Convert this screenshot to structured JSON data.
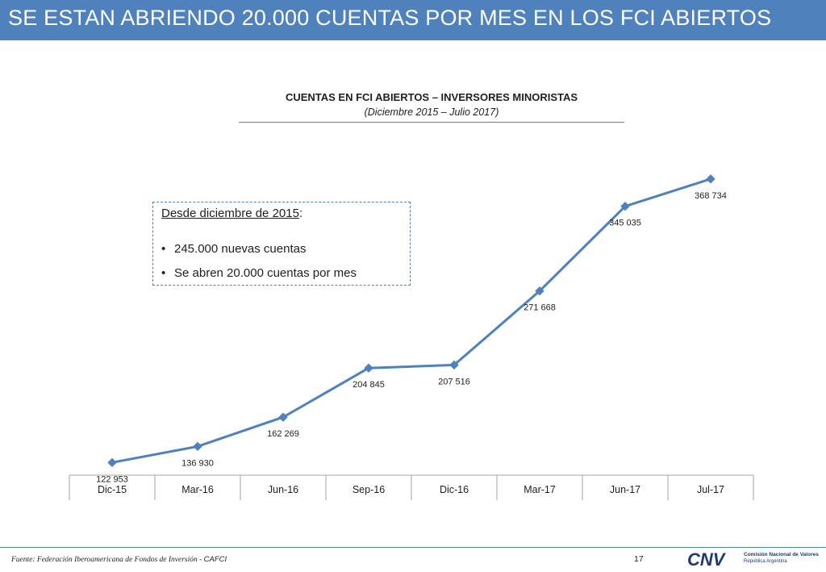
{
  "slide": {
    "title": "SE ESTAN ABRIENDO 20.000 CUENTAS POR MES EN LOS FCI ABIERTOS",
    "page_number": "17",
    "accent_color": "#4f81bd"
  },
  "callout": {
    "heading": "Desde diciembre de 2015",
    "heading_suffix": ":",
    "bullets": [
      "245.000 nuevas cuentas",
      "Se abren 20.000 cuentas por mes"
    ]
  },
  "footer": {
    "source_label": "Fuente: Federación Iberoamericana de Fondos de Inversión - ",
    "source_org": "CAFCI",
    "logo_text": "CNV",
    "logo_line1": "Comisión Nacional de Valores",
    "logo_line2": "República Argentina"
  },
  "chart_data": {
    "type": "line",
    "title": "CUENTAS EN FCI ABIERTOS – INVERSORES MINORISTAS",
    "subtitle": "(Diciembre 2015 –  Julio 2017)",
    "categories": [
      "Dic-15",
      "Mar-16",
      "Jun-16",
      "Sep-16",
      "Dic-16",
      "Mar-17",
      "Jun-17",
      "Jul-17"
    ],
    "series": [
      {
        "values": [
          122953,
          136930,
          162269,
          204845,
          207516,
          271668,
          345035,
          368734
        ],
        "labels": [
          "122 953",
          "136 930",
          "162 269",
          "204 845",
          "207 516",
          "271 668",
          "345 035",
          "368 734"
        ],
        "color": "#4f81bd",
        "marker": "diamond"
      }
    ],
    "ylim": [
      112000,
      377000
    ],
    "grid": false,
    "legend": "none"
  }
}
